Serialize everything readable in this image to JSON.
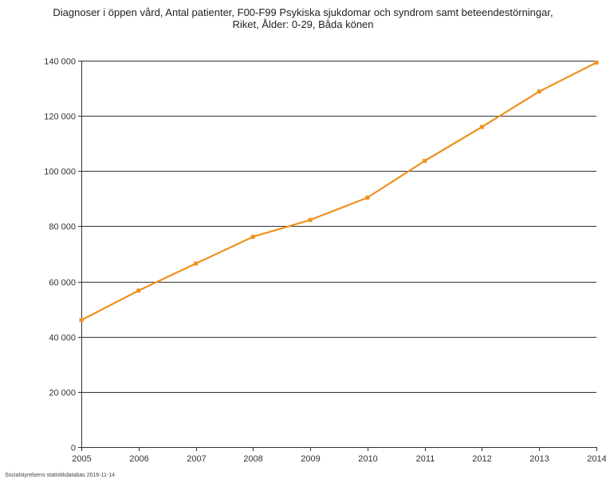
{
  "chart_data": {
    "type": "line",
    "title": "Diagnoser i öppen vård, Antal patienter, F00-F99 Psykiska sjukdomar och syndrom samt beteendestörningar,",
    "subtitle": "Riket, Ålder: 0-29, Båda könen",
    "xlabel": "",
    "ylabel": "",
    "x": [
      "2005",
      "2006",
      "2007",
      "2008",
      "2009",
      "2010",
      "2011",
      "2012",
      "2013",
      "2014"
    ],
    "series": [
      {
        "values": [
          46000,
          56700,
          66500,
          76200,
          82300,
          90400,
          103700,
          116000,
          128800,
          139300
        ],
        "color": "#f0901e"
      }
    ],
    "ylim": [
      0,
      140000
    ],
    "yticks": [
      0,
      20000,
      40000,
      60000,
      80000,
      100000,
      120000,
      140000
    ],
    "ytick_labels": [
      "0",
      "20 000",
      "40 000",
      "60 000",
      "80 000",
      "100 000",
      "120 000",
      "140 000"
    ],
    "grid": true,
    "gridline_color": "#333333",
    "source": "Socialstyrelsens statistikdatabas 2016-11-14"
  }
}
